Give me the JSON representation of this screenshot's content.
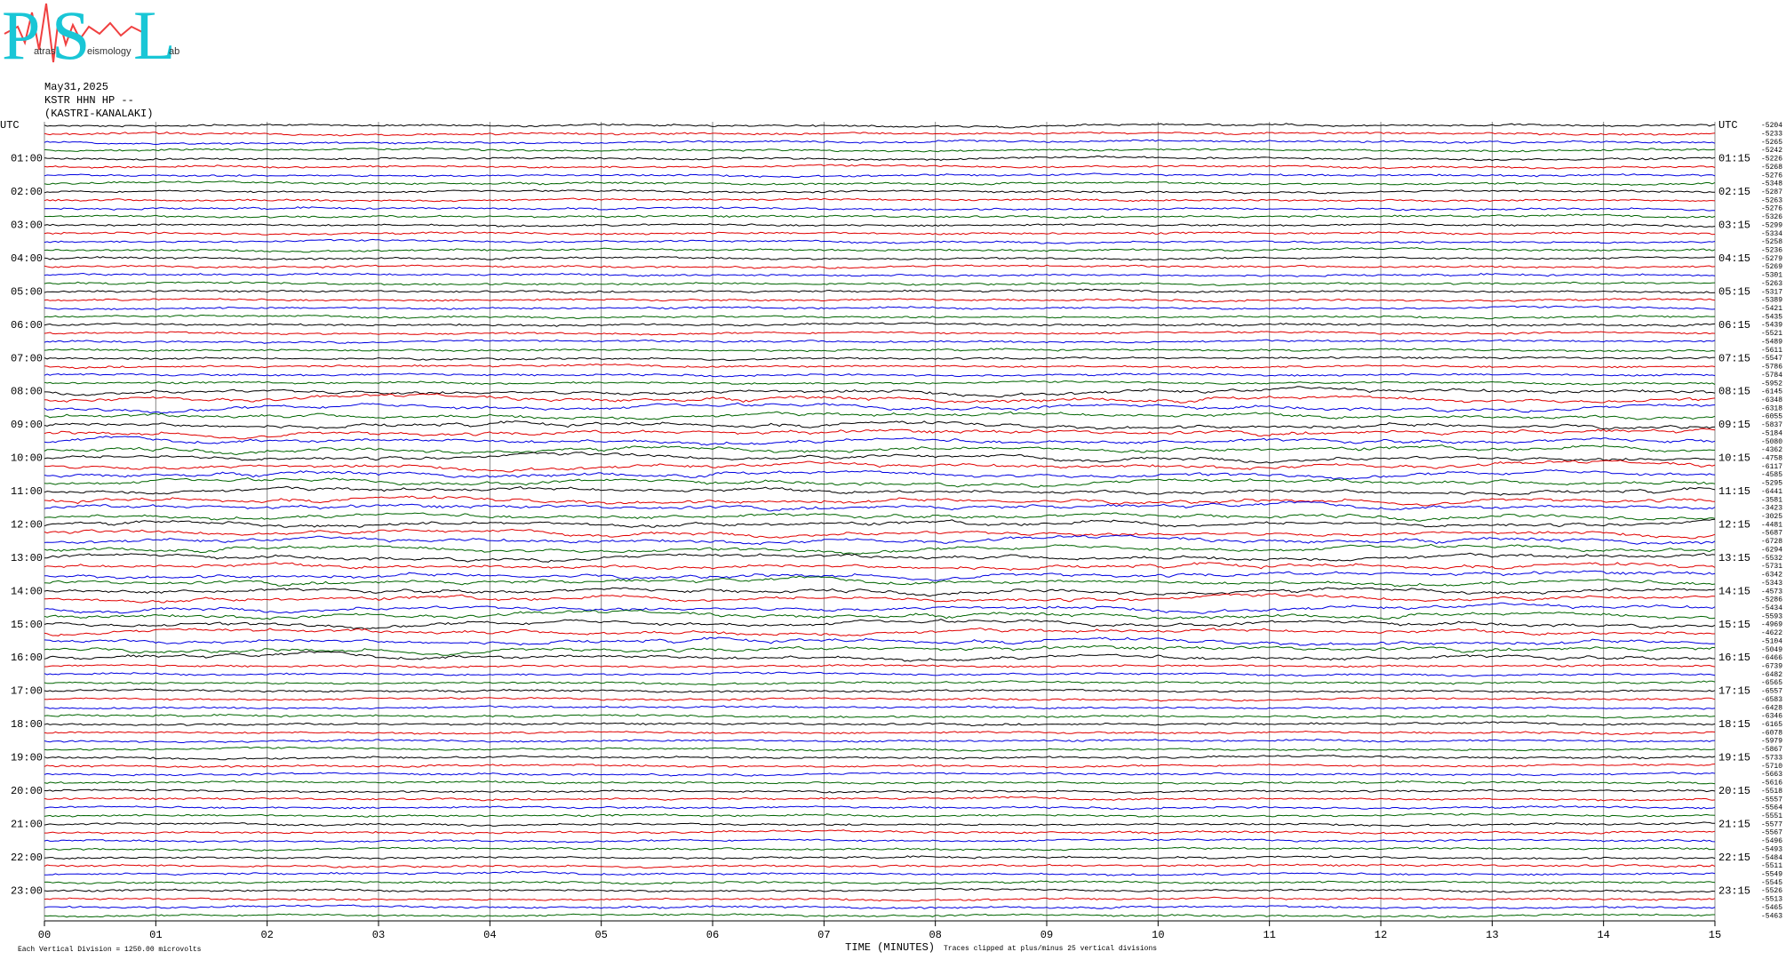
{
  "logo": {
    "letters": [
      "P",
      "S",
      "L"
    ],
    "words": [
      "atras",
      "eismology",
      "ab"
    ]
  },
  "chart_data": {
    "type": "helicorder",
    "date": "May31,2025",
    "station": "KSTR HHN HP --",
    "site": "(KASTRI-KANALAKI)",
    "left_labels": [
      "UTC",
      "01:00",
      "02:00",
      "03:00",
      "04:00",
      "05:00",
      "06:00",
      "07:00",
      "08:00",
      "09:00",
      "10:00",
      "11:00",
      "12:00",
      "13:00",
      "14:00",
      "15:00",
      "16:00",
      "17:00",
      "18:00",
      "19:00",
      "20:00",
      "21:00",
      "22:00",
      "23:00"
    ],
    "right_labels": [
      "UTC",
      "01:15",
      "02:15",
      "03:15",
      "04:15",
      "05:15",
      "06:15",
      "07:15",
      "08:15",
      "09:15",
      "10:15",
      "11:15",
      "12:15",
      "13:15",
      "14:15",
      "15:15",
      "16:15",
      "17:15",
      "18:15",
      "19:15",
      "20:15",
      "21:15",
      "22:15",
      "23:15"
    ],
    "offsets": [
      -5204,
      -5233,
      -5265,
      -5242,
      -5226,
      -5268,
      -5276,
      -5348,
      -5287,
      -5263,
      -5276,
      -5326,
      -5299,
      -5334,
      -5258,
      -5236,
      -5279,
      -5269,
      -5301,
      -5263,
      -5317,
      -5389,
      -5421,
      -5435,
      -5439,
      -5521,
      -5489,
      -5611,
      -5547,
      -5786,
      -5784,
      -5952,
      -6145,
      -6348,
      -6318,
      -6055,
      -5837,
      -5184,
      -5080,
      -4362,
      -4758,
      -6117,
      -4585,
      -5295,
      -6441,
      -3581,
      -3423,
      -3025,
      -4481,
      -5687,
      -6728,
      -6294,
      -5532,
      -5731,
      -6342,
      -5343,
      -4573,
      -5286,
      -5434,
      -5593,
      -4969,
      -4622,
      -5104,
      -5049,
      -6466,
      -6739,
      -6482,
      -6565,
      -6557,
      -6583,
      -6428,
      -6346,
      -6165,
      -6078,
      -5979,
      -5867,
      -5733,
      -5710,
      -5663,
      -5616,
      -5518,
      -5557,
      -5564,
      -5551,
      -5577,
      -5567,
      -5496,
      -5493,
      -5484,
      -5511,
      -5549,
      -5545,
      -5526,
      -5513,
      -5465,
      -5463
    ],
    "trace_colors": [
      "#000000",
      "#e00000",
      "#0000e0",
      "#006400"
    ],
    "xlim": [
      0,
      15
    ],
    "xticks": [
      {
        "value": 0,
        "label": "00"
      },
      {
        "value": 1,
        "label": "01"
      },
      {
        "value": 2,
        "label": "02"
      },
      {
        "value": 3,
        "label": "03"
      },
      {
        "value": 4,
        "label": "04"
      },
      {
        "value": 5,
        "label": "05"
      },
      {
        "value": 6,
        "label": "06"
      },
      {
        "value": 7,
        "label": "07"
      },
      {
        "value": 8,
        "label": "08"
      },
      {
        "value": 9,
        "label": "09"
      },
      {
        "value": 10,
        "label": "10"
      },
      {
        "value": 11,
        "label": "11"
      },
      {
        "value": 12,
        "label": "12"
      },
      {
        "value": 13,
        "label": "13"
      },
      {
        "value": 14,
        "label": "14"
      },
      {
        "value": 15,
        "label": "15"
      }
    ],
    "xlabel": "TIME (MINUTES)",
    "scale_note": "Each Vertical Division = 1250.00 microvolts",
    "clip_note": "Traces clipped at plus/minus 25 vertical divisions",
    "grid": true
  }
}
